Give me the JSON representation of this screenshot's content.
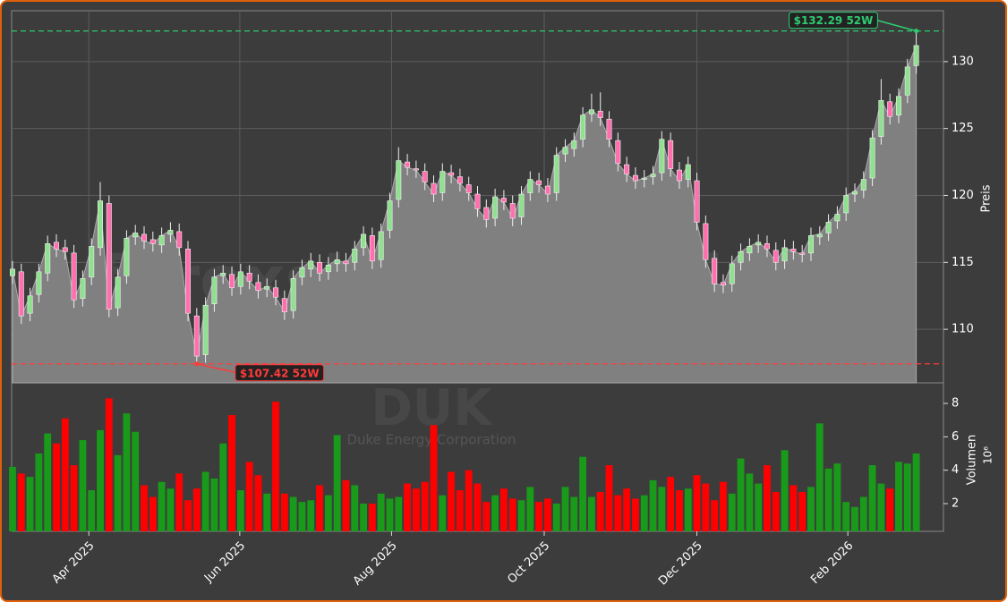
{
  "chart_data": {
    "type": "candlestick",
    "watermark": "forexsignale.trade",
    "ticker": "DUK",
    "company": "Duke Energy Corporation",
    "ylabel": "Preis",
    "y2label": "Volumen",
    "y2_offset": "10⁶",
    "up_color": "#8fe08f",
    "down_color": "#ff6fae",
    "volume_up_color": "#1a9a1a",
    "volume_down_color": "#ff0000",
    "area_color": "#808080",
    "grid": true,
    "xlim": [
      -0.1,
      106.1
    ],
    "xticks": [
      {
        "value": 8.7,
        "label": "Apr 2025"
      },
      {
        "value": 25.9,
        "label": "Jun 2025"
      },
      {
        "value": 43.2,
        "label": "Aug 2025"
      },
      {
        "value": 60.6,
        "label": "Oct 2025"
      },
      {
        "value": 78.0,
        "label": "Dec 2025"
      },
      {
        "value": 95.2,
        "label": "Feb 2026"
      }
    ],
    "ylim": [
      106,
      133.8
    ],
    "yticks": [
      110,
      115,
      120,
      125,
      130
    ],
    "y2lim": [
      0.34,
      9.23
    ],
    "y2ticks": [
      2,
      4,
      6,
      8
    ],
    "annotations": [
      {
        "label": "$132.29 52W",
        "value": 132.29,
        "index": 103,
        "color": "#2ecc71"
      },
      {
        "label": "$107.42 52W",
        "value": 107.42,
        "index": 21,
        "color": "#ff3b3b"
      }
    ],
    "open": [
      114.0,
      114.3,
      111.2,
      112.6,
      114.2,
      116.5,
      116.1,
      115.7,
      112.3,
      113.9,
      116.1,
      119.4,
      111.6,
      114.0,
      116.9,
      117.1,
      116.7,
      116.3,
      117.1,
      117.3,
      116.0,
      111.0,
      108.1,
      111.9,
      114.0,
      114.1,
      113.2,
      114.2,
      113.5,
      113.0,
      113.1,
      112.3,
      111.4,
      113.9,
      114.5,
      115.0,
      114.3,
      114.9,
      115.1,
      115.0,
      116.1,
      117.0,
      115.2,
      117.4,
      119.7,
      122.5,
      122.0,
      121.8,
      120.9,
      120.2,
      121.7,
      121.4,
      120.8,
      120.1,
      119.1,
      118.3,
      119.8,
      119.4,
      118.4,
      120.2,
      121.1,
      120.7,
      120.2,
      123.1,
      123.5,
      124.2,
      126.1,
      126.3,
      125.7,
      124.1,
      122.3,
      121.5,
      121.2,
      121.4,
      121.7,
      124.1,
      121.9,
      121.2,
      121.1,
      117.9,
      115.3,
      113.5,
      113.4,
      115.0,
      115.7,
      116.3,
      116.4,
      115.9,
      115.1,
      116.0,
      115.7,
      115.7,
      116.9,
      117.2,
      118.1,
      118.7,
      120.1,
      120.4,
      121.3,
      124.4,
      127.0,
      126.0,
      127.5,
      129.7
    ],
    "high": [
      115.1,
      114.9,
      113.1,
      114.9,
      117.0,
      117.1,
      116.7,
      116.3,
      114.4,
      116.8,
      121.0,
      120.0,
      114.5,
      117.4,
      117.8,
      117.7,
      117.3,
      117.6,
      118.0,
      117.9,
      116.6,
      111.6,
      112.4,
      114.5,
      114.8,
      114.7,
      114.9,
      114.8,
      114.1,
      113.8,
      113.7,
      112.9,
      114.4,
      115.2,
      115.7,
      115.6,
      115.4,
      115.8,
      115.7,
      116.6,
      117.7,
      117.6,
      117.9,
      120.2,
      123.6,
      123.1,
      122.6,
      122.4,
      121.5,
      122.4,
      122.3,
      122.0,
      121.4,
      120.7,
      119.7,
      120.5,
      120.4,
      120.0,
      120.7,
      121.8,
      121.7,
      121.3,
      123.6,
      124.2,
      124.7,
      126.6,
      127.6,
      127.7,
      126.3,
      124.7,
      122.9,
      122.1,
      121.9,
      122.2,
      124.8,
      124.7,
      122.5,
      122.9,
      121.7,
      118.5,
      115.9,
      114.1,
      115.5,
      116.4,
      116.8,
      117.1,
      117.0,
      116.5,
      116.7,
      116.6,
      116.3,
      117.6,
      117.7,
      118.6,
      119.2,
      120.6,
      120.9,
      121.8,
      124.9,
      128.7,
      127.6,
      128.0,
      130.2,
      132.29
    ],
    "low": [
      113.4,
      110.4,
      110.6,
      112.0,
      113.6,
      115.4,
      115.2,
      111.6,
      111.7,
      113.3,
      115.5,
      110.9,
      111.0,
      113.4,
      116.3,
      116.0,
      115.8,
      115.7,
      116.5,
      115.5,
      110.6,
      107.42,
      107.5,
      111.3,
      113.4,
      112.5,
      112.6,
      113.0,
      112.3,
      112.4,
      111.8,
      110.7,
      110.8,
      113.3,
      113.9,
      113.6,
      113.7,
      114.3,
      114.3,
      114.4,
      115.5,
      114.5,
      114.6,
      116.8,
      119.1,
      121.5,
      121.3,
      120.4,
      119.5,
      119.6,
      120.9,
      120.3,
      119.6,
      118.4,
      117.6,
      117.7,
      118.9,
      117.7,
      117.8,
      119.6,
      120.2,
      119.5,
      119.6,
      122.5,
      122.9,
      123.6,
      125.5,
      125.2,
      123.6,
      121.8,
      121.0,
      120.5,
      120.6,
      120.8,
      121.1,
      121.4,
      120.5,
      120.6,
      117.4,
      114.6,
      112.8,
      112.7,
      112.8,
      114.4,
      115.1,
      115.7,
      115.4,
      114.4,
      114.5,
      115.2,
      115.0,
      115.1,
      116.3,
      116.6,
      117.5,
      118.1,
      119.5,
      119.8,
      120.7,
      123.8,
      125.3,
      125.4,
      126.9,
      129.1
    ],
    "close": [
      114.5,
      111.0,
      112.5,
      114.3,
      116.4,
      116.0,
      115.8,
      112.2,
      113.8,
      116.2,
      119.6,
      111.5,
      113.9,
      116.8,
      117.2,
      116.6,
      116.4,
      117.0,
      117.4,
      116.1,
      111.2,
      108.0,
      111.8,
      113.9,
      114.2,
      113.1,
      114.3,
      113.6,
      112.9,
      113.2,
      112.4,
      111.3,
      113.8,
      114.6,
      115.1,
      114.2,
      114.8,
      115.2,
      114.9,
      116.0,
      117.1,
      115.1,
      117.3,
      119.6,
      122.6,
      122.1,
      121.9,
      121.0,
      120.1,
      121.8,
      121.5,
      120.9,
      120.2,
      119.0,
      118.2,
      119.9,
      119.5,
      118.3,
      120.1,
      121.2,
      120.8,
      120.1,
      123.0,
      123.6,
      124.1,
      126.0,
      126.4,
      125.8,
      124.2,
      122.4,
      121.6,
      121.1,
      121.3,
      121.6,
      124.2,
      122.0,
      121.1,
      122.3,
      118.0,
      115.2,
      113.4,
      113.3,
      114.9,
      115.8,
      116.2,
      116.5,
      116.0,
      115.0,
      116.1,
      115.8,
      115.6,
      117.0,
      117.1,
      118.0,
      118.6,
      120.0,
      120.3,
      121.2,
      124.3,
      127.1,
      125.9,
      127.4,
      129.6,
      131.2
    ],
    "volume": [
      4.2,
      3.8,
      3.6,
      5.0,
      6.2,
      5.6,
      7.1,
      4.3,
      5.8,
      2.8,
      6.4,
      8.3,
      4.9,
      7.4,
      6.3,
      3.1,
      2.4,
      3.3,
      2.9,
      3.8,
      2.2,
      2.9,
      3.9,
      3.5,
      5.6,
      7.3,
      2.8,
      4.5,
      3.7,
      2.6,
      8.1,
      2.6,
      2.4,
      2.1,
      2.2,
      3.1,
      2.5,
      6.1,
      3.4,
      3.1,
      2.0,
      2.0,
      2.6,
      2.3,
      2.4,
      3.2,
      2.9,
      3.3,
      6.7,
      2.5,
      3.9,
      2.8,
      4.0,
      3.2,
      2.1,
      2.5,
      2.9,
      2.3,
      2.2,
      3.0,
      2.1,
      2.3,
      2.0,
      3.0,
      2.4,
      4.8,
      2.4,
      2.7,
      4.3,
      2.5,
      2.9,
      2.3,
      2.5,
      3.4,
      3.0,
      3.6,
      2.8,
      2.9,
      3.7,
      3.2,
      2.2,
      3.3,
      2.6,
      4.7,
      3.8,
      3.2,
      4.3,
      2.7,
      5.2,
      3.1,
      2.7,
      3.0,
      6.8,
      4.1,
      4.4,
      2.1,
      1.8,
      2.4,
      4.3,
      3.2,
      2.9,
      4.5,
      4.4,
      5.0
    ]
  }
}
